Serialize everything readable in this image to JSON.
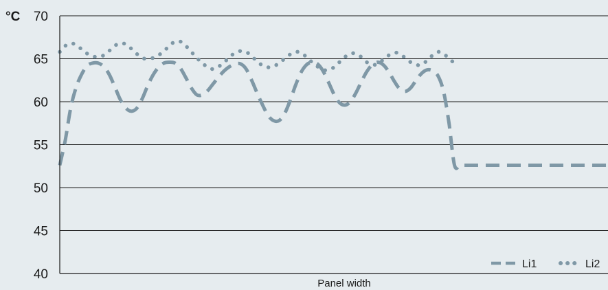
{
  "chart_data": {
    "type": "line",
    "ylabel": "°C",
    "xlabel": "Panel width",
    "ylim": [
      40,
      70
    ],
    "yticks": [
      40,
      45,
      50,
      55,
      60,
      65,
      70
    ],
    "xlim": [
      0,
      100
    ],
    "grid": true,
    "legend_position": "bottom-right",
    "colors": {
      "series": "#7f98a6",
      "grid": "#1a1a1a",
      "background": "#e6ecef"
    },
    "series": [
      {
        "name": "Li1",
        "style": "dashed",
        "x": [
          0,
          1,
          2,
          3,
          4,
          5,
          6,
          7,
          8,
          9,
          10,
          11,
          12,
          13,
          14,
          15,
          16,
          17,
          18,
          19,
          20,
          21,
          22,
          23,
          24,
          25,
          26,
          27,
          28,
          29,
          30,
          31,
          32,
          33,
          34,
          35,
          36,
          37,
          38,
          39,
          40,
          41,
          42,
          43,
          44,
          45,
          46,
          47,
          48,
          49,
          50,
          51,
          52,
          53,
          54,
          55,
          56,
          57,
          58,
          59,
          60,
          61,
          62,
          63,
          64,
          65,
          66,
          67,
          68,
          69,
          70,
          71,
          72,
          73,
          74,
          75,
          76,
          77,
          78,
          79,
          80,
          81,
          82,
          83,
          84,
          85,
          86,
          87,
          88,
          89,
          90,
          91,
          92,
          93,
          94,
          95,
          96,
          97,
          98,
          99,
          100
        ],
        "values": [
          52.6,
          55.5,
          59.3,
          61.7,
          63.2,
          64.2,
          64.5,
          64.5,
          64.1,
          63.2,
          61.8,
          60.3,
          59.3,
          58.9,
          59.2,
          60.3,
          61.8,
          63.1,
          64.0,
          64.5,
          64.6,
          64.5,
          63.9,
          62.8,
          61.6,
          60.8,
          60.8,
          61.3,
          62.1,
          62.9,
          63.6,
          64.1,
          64.4,
          64.4,
          63.8,
          62.5,
          61.0,
          59.6,
          58.4,
          57.8,
          57.8,
          58.6,
          60.1,
          61.9,
          63.4,
          64.3,
          64.6,
          64.4,
          63.6,
          62.3,
          60.9,
          59.9,
          59.6,
          60.0,
          61.0,
          62.3,
          63.5,
          64.3,
          64.6,
          64.3,
          63.5,
          62.4,
          61.5,
          61.2,
          61.6,
          62.5,
          63.3,
          63.7,
          63.6,
          63.0,
          61.2,
          57.5,
          52.6,
          52.6,
          52.6,
          52.6,
          52.6,
          52.6,
          52.6,
          52.6,
          52.6,
          52.6,
          52.6,
          52.6,
          52.6,
          52.6,
          52.6,
          52.6,
          52.6,
          52.6,
          52.6,
          52.6,
          52.6,
          52.6,
          52.6,
          52.6,
          52.6,
          52.6,
          52.6,
          52.6,
          52.6
        ]
      },
      {
        "name": "Li2",
        "style": "dotted",
        "x": [
          0,
          1,
          2,
          3,
          4,
          5,
          6,
          7,
          8,
          9,
          10,
          11,
          12,
          13,
          14,
          15,
          16,
          17,
          18,
          19,
          20,
          21,
          22,
          23,
          24,
          25,
          26,
          27,
          28,
          29,
          30,
          31,
          32,
          33,
          34,
          35,
          36,
          37,
          38,
          39,
          40,
          41,
          42,
          43,
          44,
          45,
          46,
          47,
          48,
          49,
          50,
          51,
          52,
          53,
          54,
          55,
          56,
          57,
          58,
          59,
          60,
          61,
          62,
          63,
          64,
          65,
          66,
          67,
          68,
          69,
          70,
          71,
          72
        ],
        "values": [
          65.8,
          66.5,
          66.8,
          66.6,
          66.1,
          65.6,
          65.3,
          65.2,
          65.4,
          65.9,
          66.5,
          66.8,
          66.7,
          66.2,
          65.6,
          65.1,
          65.0,
          65.1,
          65.4,
          65.9,
          66.5,
          67.0,
          67.0,
          66.5,
          65.8,
          65.1,
          64.5,
          64.0,
          63.8,
          64.1,
          64.6,
          65.2,
          65.7,
          65.9,
          65.8,
          65.3,
          64.7,
          64.2,
          64.0,
          64.1,
          64.5,
          65.0,
          65.5,
          65.8,
          65.7,
          65.2,
          64.6,
          64.1,
          63.7,
          63.7,
          64.0,
          64.6,
          65.2,
          65.6,
          65.6,
          65.2,
          64.6,
          64.3,
          64.4,
          64.9,
          65.4,
          65.7,
          65.6,
          65.1,
          64.6,
          64.3,
          64.3,
          64.8,
          65.4,
          65.8,
          65.6,
          65.0,
          64.5
        ]
      }
    ]
  }
}
